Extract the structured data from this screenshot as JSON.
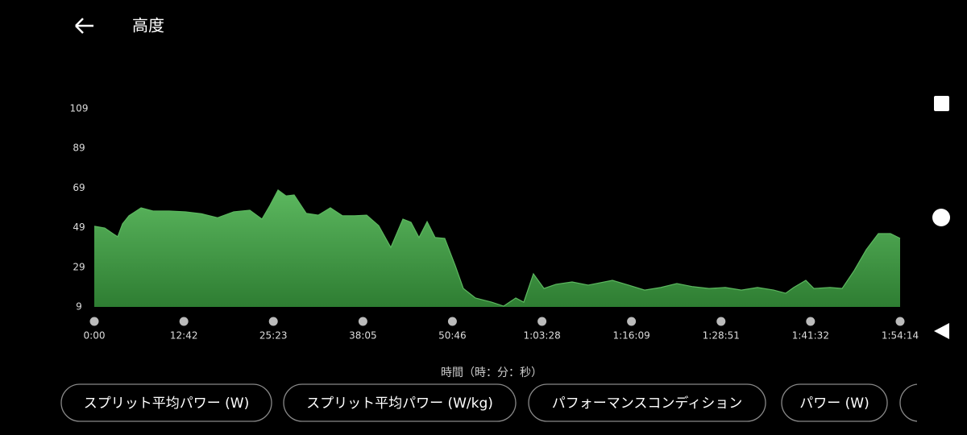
{
  "header": {
    "title": "高度"
  },
  "chart_data": {
    "type": "area",
    "x_label": "時間（時：分：秒）",
    "color": "#5cb85f",
    "x": [
      0,
      89,
      158,
      199,
      240,
      295,
      398,
      500,
      637,
      775,
      912,
      1049,
      1186,
      1323,
      1426,
      1494,
      1563,
      1631,
      1700,
      1803,
      1905,
      2008,
      2111,
      2214,
      2317,
      2419,
      2522,
      2625,
      2694,
      2762,
      2831,
      2899,
      2981,
      3071,
      3139,
      3242,
      3379,
      3482,
      3585,
      3653,
      3735,
      3825,
      3927,
      4064,
      4201,
      4407,
      4544,
      4681,
      4818,
      4955,
      5092,
      5229,
      5367,
      5504,
      5641,
      5778,
      5881,
      5949,
      6052,
      6121,
      6258,
      6361,
      6463,
      6566,
      6669,
      6772,
      6854
    ],
    "values": [
      49.7,
      48.8,
      46,
      44.4,
      50.9,
      55,
      59,
      57.4,
      57.4,
      57,
      56,
      54,
      57,
      57.8,
      53.3,
      60.2,
      68,
      65,
      65.5,
      56.2,
      55.3,
      59,
      55,
      55,
      55.3,
      50,
      39,
      53.3,
      51.7,
      44,
      52,
      44,
      43.6,
      29.7,
      18.3,
      13.5,
      11.4,
      9.4,
      13.5,
      11.4,
      25.7,
      18.3,
      20.4,
      21.6,
      20,
      22.4,
      20,
      17.5,
      18.8,
      20.8,
      19.2,
      18.3,
      18.8,
      17.5,
      18.8,
      17.5,
      15.9,
      18.8,
      22.4,
      18.3,
      18.8,
      18.3,
      27.3,
      37.9,
      46,
      46,
      43.6
    ],
    "xlim": [
      0,
      6854
    ],
    "xticks": [
      {
        "value": 0,
        "label": "0:00"
      },
      {
        "value": 762,
        "label": "12:42"
      },
      {
        "value": 1523,
        "label": "25:23"
      },
      {
        "value": 2285,
        "label": "38:05"
      },
      {
        "value": 3046,
        "label": "50:46"
      },
      {
        "value": 3808,
        "label": "1:03:28"
      },
      {
        "value": 4569,
        "label": "1:16:09"
      },
      {
        "value": 5331,
        "label": "1:28:51"
      },
      {
        "value": 6092,
        "label": "1:41:32"
      },
      {
        "value": 6854,
        "label": "1:54:14"
      }
    ],
    "ylim": [
      9,
      109
    ],
    "yticks": [
      9,
      29,
      49,
      69,
      89,
      109
    ]
  },
  "chips": [
    "スプリット平均パワー (W)",
    "スプリット平均パワー (W/kg)",
    "パフォーマンスコンディション",
    "パワー (W)"
  ]
}
